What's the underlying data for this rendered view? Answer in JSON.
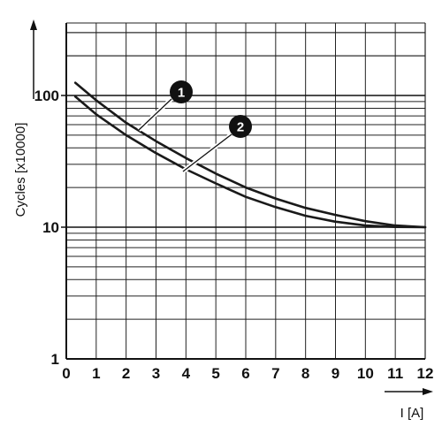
{
  "chart_data": {
    "type": "line",
    "xlabel": "I [A]",
    "ylabel": "Cycles [x10000]",
    "xlim": [
      0,
      12
    ],
    "ylim": [
      1,
      300
    ],
    "yscale": "log",
    "grid": true,
    "x_ticks": [
      "0",
      "1",
      "2",
      "3",
      "4",
      "5",
      "6",
      "7",
      "8",
      "9",
      "10",
      "11",
      "12"
    ],
    "y_ticks": [
      {
        "value": 1,
        "label": "1"
      },
      {
        "value": 10,
        "label": "10"
      },
      {
        "value": 100,
        "label": "100"
      }
    ],
    "series": [
      {
        "callout": "1",
        "x": [
          0.3,
          1,
          2,
          3,
          4,
          5,
          6,
          7,
          8,
          9,
          10,
          11,
          12
        ],
        "y": [
          125,
          92,
          62,
          45,
          33.5,
          25.5,
          20,
          16.5,
          14,
          12.4,
          11.1,
          10.3,
          10
        ]
      },
      {
        "callout": "2",
        "x": [
          0.3,
          1,
          2,
          3,
          4,
          5,
          6,
          7,
          8,
          9,
          10,
          11,
          12
        ],
        "y": [
          98,
          72,
          50,
          36.5,
          27.5,
          21.5,
          17,
          14.2,
          12.2,
          11,
          10.3,
          10.05,
          10
        ]
      }
    ],
    "line_color": "#1a1a1a",
    "grid_color": "#222222"
  }
}
